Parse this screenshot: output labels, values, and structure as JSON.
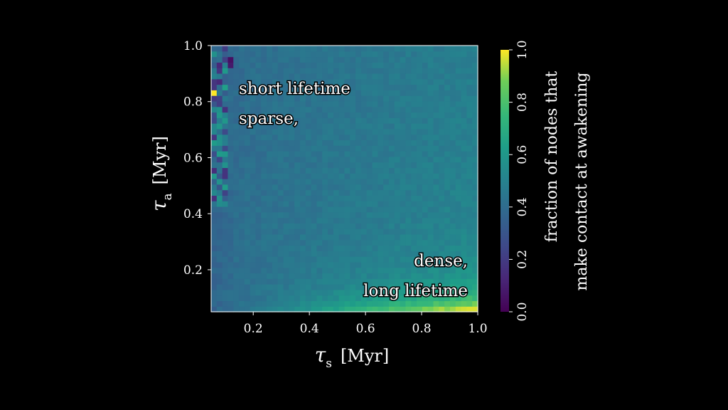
{
  "chart_data": {
    "type": "heatmap",
    "colormap": "viridis",
    "x_axis": {
      "symbol": "τ",
      "subscript": "s",
      "unit": "[Myr]",
      "ticks": [
        "0.2",
        "0.4",
        "0.6",
        "0.8",
        "1.0"
      ],
      "range": [
        0.05,
        1.0
      ]
    },
    "y_axis": {
      "symbol": "τ",
      "subscript": "a",
      "unit": "[Myr]",
      "ticks": [
        "0.2",
        "0.4",
        "0.6",
        "0.8",
        "1.0"
      ],
      "range": [
        0.05,
        1.0
      ]
    },
    "colorbar": {
      "label_line1": "fraction of nodes that",
      "label_line2": "make contact at awakening",
      "ticks": [
        "0.0",
        "0.2",
        "0.4",
        "0.6",
        "0.8",
        "1.0"
      ],
      "range": [
        0.0,
        1.0
      ]
    },
    "annotations": {
      "top_left_line1": "short lifetime",
      "top_left_line2": "sparse,",
      "bottom_right_line1": "dense,",
      "bottom_right_line2": "long lifetime"
    },
    "grid_resolution": 48,
    "pattern": "Fraction ~0.4–0.5 over most of the plane, rising to ~0.9–1.0 at large τs and small τa; noisy low and high cells near small τs"
  }
}
